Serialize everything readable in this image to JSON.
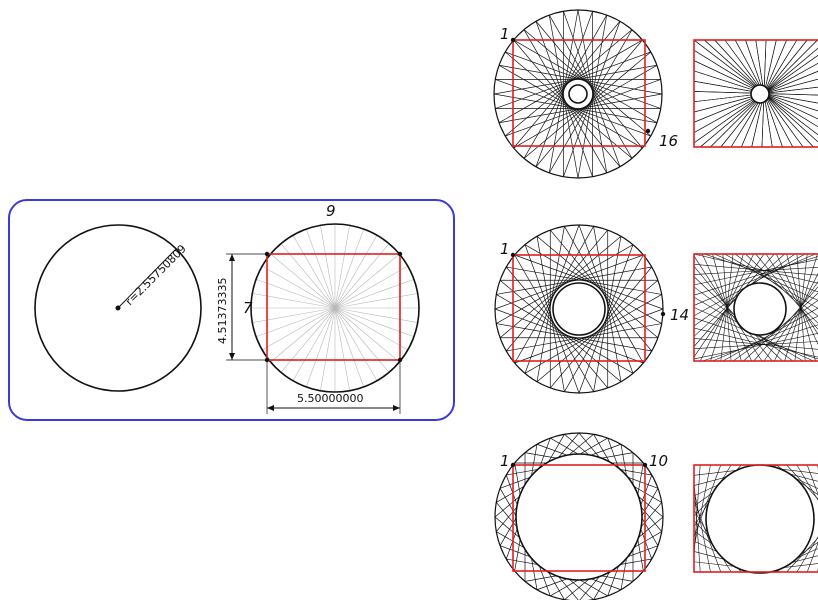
{
  "colors": {
    "frame": "#3a3ad6",
    "square": "#e02020",
    "line": "#111111",
    "guide": "#b8b8b8"
  },
  "left_panel": {
    "radius_label": "r=2.55750809",
    "segments_label": "9",
    "side_label": "7",
    "height_label": "4.51373335",
    "width_label": "5.50000000"
  },
  "figures": [
    {
      "start_label": "1",
      "end_label": "16",
      "n_points": 36,
      "skip": 16
    },
    {
      "start_label": "1",
      "end_label": "14",
      "n_points": 36,
      "skip": 14
    },
    {
      "start_label": "1",
      "end_label": "10",
      "n_points": 36,
      "skip": 10
    }
  ]
}
